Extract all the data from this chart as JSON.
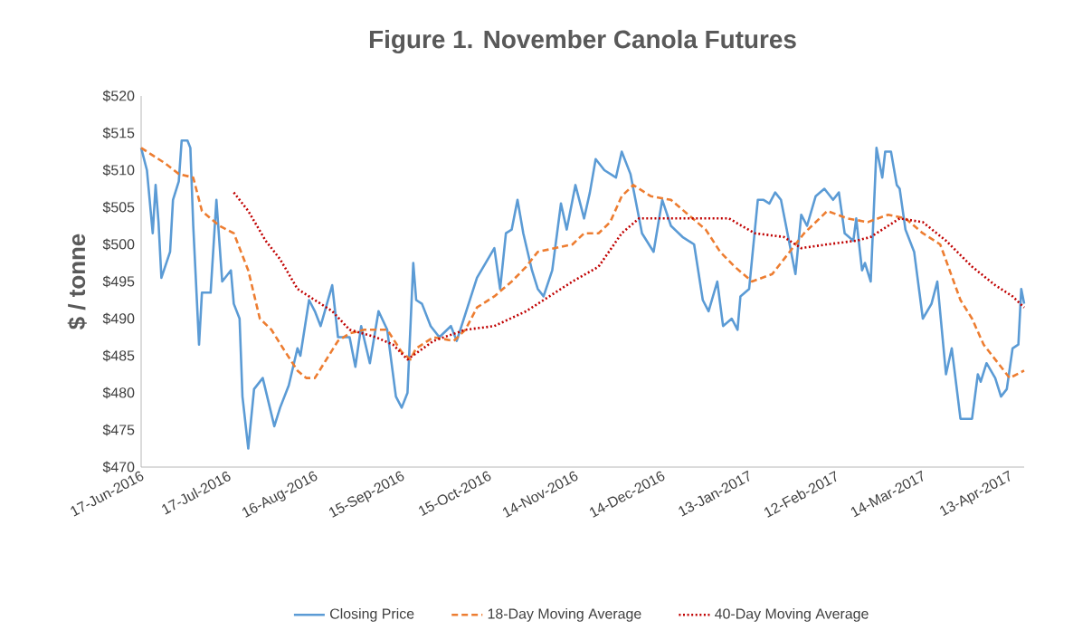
{
  "chart_data": {
    "type": "line",
    "title": "Figure 1. November Canola Futures",
    "ylabel": "$ / tonne",
    "xlim": [
      "2016-06-17",
      "2017-04-18"
    ],
    "xticks": [
      {
        "value": "2016-06-17",
        "label": "17-Jun-2016"
      },
      {
        "value": "2016-07-17",
        "label": "17-Jul-2016"
      },
      {
        "value": "2016-08-16",
        "label": "16-Aug-2016"
      },
      {
        "value": "2016-09-15",
        "label": "15-Sep-2016"
      },
      {
        "value": "2016-10-15",
        "label": "15-Oct-2016"
      },
      {
        "value": "2016-11-14",
        "label": "14-Nov-2016"
      },
      {
        "value": "2016-12-14",
        "label": "14-Dec-2016"
      },
      {
        "value": "2017-01-13",
        "label": "13-Jan-2017"
      },
      {
        "value": "2017-02-12",
        "label": "12-Feb-2017"
      },
      {
        "value": "2017-03-14",
        "label": "14-Mar-2017"
      },
      {
        "value": "2017-04-13",
        "label": "13-Apr-2017"
      }
    ],
    "ylim": [
      470,
      520
    ],
    "yticks": [
      {
        "value": 470,
        "label": "$470"
      },
      {
        "value": 475,
        "label": "$475"
      },
      {
        "value": 480,
        "label": "$480"
      },
      {
        "value": 485,
        "label": "$485"
      },
      {
        "value": 490,
        "label": "$490"
      },
      {
        "value": 495,
        "label": "$495"
      },
      {
        "value": 500,
        "label": "$500"
      },
      {
        "value": 505,
        "label": "$505"
      },
      {
        "value": 510,
        "label": "$510"
      },
      {
        "value": 515,
        "label": "$515"
      },
      {
        "value": 520,
        "label": "$520"
      }
    ],
    "grid": false,
    "legend": "bottom",
    "marker": "none",
    "series": [
      {
        "name": "Closing Price",
        "color": "#5b9bd5",
        "line_style": "solid",
        "x": [
          "2016-06-17",
          "2016-06-19",
          "2016-06-21",
          "2016-06-22",
          "2016-06-23",
          "2016-06-24",
          "2016-06-27",
          "2016-06-28",
          "2016-06-30",
          "2016-07-01",
          "2016-07-03",
          "2016-07-04",
          "2016-07-05",
          "2016-07-07",
          "2016-07-08",
          "2016-07-11",
          "2016-07-13",
          "2016-07-15",
          "2016-07-18",
          "2016-07-19",
          "2016-07-21",
          "2016-07-22",
          "2016-07-24",
          "2016-07-26",
          "2016-07-29",
          "2016-08-02",
          "2016-08-04",
          "2016-08-07",
          "2016-08-10",
          "2016-08-11",
          "2016-08-14",
          "2016-08-16",
          "2016-08-18",
          "2016-08-22",
          "2016-08-24",
          "2016-08-28",
          "2016-08-30",
          "2016-09-01",
          "2016-09-04",
          "2016-09-07",
          "2016-09-10",
          "2016-09-13",
          "2016-09-15",
          "2016-09-17",
          "2016-09-19",
          "2016-09-20",
          "2016-09-22",
          "2016-09-25",
          "2016-09-28",
          "2016-10-02",
          "2016-10-04",
          "2016-10-11",
          "2016-10-17",
          "2016-10-19",
          "2016-10-21",
          "2016-10-23",
          "2016-10-25",
          "2016-10-27",
          "2016-10-30",
          "2016-11-01",
          "2016-11-03",
          "2016-11-06",
          "2016-11-09",
          "2016-11-11",
          "2016-11-14",
          "2016-11-17",
          "2016-11-19",
          "2016-11-21",
          "2016-11-24",
          "2016-11-28",
          "2016-11-30",
          "2016-12-03",
          "2016-12-06",
          "2016-12-07",
          "2016-12-11",
          "2016-12-14",
          "2016-12-17",
          "2016-12-21",
          "2016-12-25",
          "2016-12-28",
          "2016-12-30",
          "2017-01-02",
          "2017-01-04",
          "2017-01-07",
          "2017-01-09",
          "2017-01-10",
          "2017-01-13",
          "2017-01-16",
          "2017-01-18",
          "2017-01-20",
          "2017-01-22",
          "2017-01-24",
          "2017-01-26",
          "2017-01-29",
          "2017-01-31",
          "2017-02-02",
          "2017-02-05",
          "2017-02-08",
          "2017-02-11",
          "2017-02-13",
          "2017-02-15",
          "2017-02-18",
          "2017-02-19",
          "2017-02-21",
          "2017-02-22",
          "2017-02-24",
          "2017-02-26",
          "2017-02-28",
          "2017-03-01",
          "2017-03-03",
          "2017-03-05",
          "2017-03-06",
          "2017-03-08",
          "2017-03-11",
          "2017-03-14",
          "2017-03-17",
          "2017-03-19",
          "2017-03-22",
          "2017-03-24",
          "2017-03-27",
          "2017-03-31",
          "2017-04-02",
          "2017-04-03",
          "2017-04-05",
          "2017-04-08",
          "2017-04-10",
          "2017-04-12",
          "2017-04-14",
          "2017-04-16",
          "2017-04-17",
          "2017-04-18"
        ],
        "values": [
          513,
          510,
          501.5,
          508,
          503,
          495.5,
          499,
          506,
          508.5,
          514,
          514,
          513,
          502.5,
          486.5,
          493.5,
          493.5,
          506,
          495,
          496.5,
          492,
          490,
          479.5,
          472.5,
          480.5,
          482,
          475.5,
          478,
          481,
          486,
          485,
          492.5,
          491,
          489,
          494.5,
          487.5,
          487.5,
          483.5,
          489,
          484,
          491,
          488.5,
          479.5,
          478,
          480,
          497.5,
          492.5,
          492,
          489,
          487.5,
          489,
          487,
          495.5,
          499.5,
          494,
          501.5,
          502,
          506,
          501.5,
          496.5,
          494,
          493,
          496.5,
          505.5,
          502,
          508,
          503.5,
          507,
          511.5,
          510,
          509,
          512.5,
          509.5,
          503.5,
          501.5,
          499,
          506,
          502.5,
          501,
          500,
          492.5,
          491,
          495,
          489,
          490,
          488.5,
          493,
          494,
          506,
          506,
          505.5,
          507,
          506,
          502,
          496,
          504,
          502.5,
          506.5,
          507.5,
          506,
          507,
          501.5,
          500.5,
          503.5,
          496.5,
          497.5,
          495,
          513,
          509,
          512.5,
          512.5,
          508,
          507.5,
          502,
          499,
          490,
          492,
          495,
          482.5,
          486,
          476.5,
          476.5,
          482.5,
          481.5,
          484,
          482,
          479.5,
          480.5,
          486,
          486.5,
          494,
          492
        ]
      },
      {
        "name": "18-Day Moving Average",
        "color": "#ed7d31",
        "line_style": "dashed",
        "x": [
          "2016-06-17",
          "2016-06-25",
          "2016-06-30",
          "2016-07-05",
          "2016-07-08",
          "2016-07-14",
          "2016-07-19",
          "2016-07-24",
          "2016-07-28",
          "2016-08-01",
          "2016-08-05",
          "2016-08-10",
          "2016-08-13",
          "2016-08-16",
          "2016-08-20",
          "2016-08-24",
          "2016-08-28",
          "2016-09-02",
          "2016-09-06",
          "2016-09-10",
          "2016-09-15",
          "2016-09-18",
          "2016-09-20",
          "2016-09-26",
          "2016-10-03",
          "2016-10-07",
          "2016-10-11",
          "2016-10-17",
          "2016-10-23",
          "2016-10-28",
          "2016-11-01",
          "2016-11-07",
          "2016-11-13",
          "2016-11-17",
          "2016-11-22",
          "2016-11-26",
          "2016-11-30",
          "2016-12-04",
          "2016-12-10",
          "2016-12-17",
          "2016-12-23",
          "2016-12-29",
          "2017-01-03",
          "2017-01-08",
          "2017-01-14",
          "2017-01-21",
          "2017-01-27",
          "2017-02-01",
          "2017-02-09",
          "2017-02-16",
          "2017-02-23",
          "2017-03-02",
          "2017-03-08",
          "2017-03-14",
          "2017-03-20",
          "2017-03-27",
          "2017-03-31",
          "2017-04-04",
          "2017-04-08",
          "2017-04-13",
          "2017-04-18"
        ],
        "values": [
          513,
          511,
          509.5,
          509,
          504.5,
          502.5,
          501.5,
          496.5,
          490,
          488.5,
          486,
          483,
          482,
          482,
          484.5,
          487,
          488,
          488.5,
          488.5,
          488.5,
          485.5,
          484.5,
          486,
          487.5,
          487,
          488.5,
          491.5,
          493,
          495,
          497,
          499,
          499.5,
          500,
          501.5,
          501.5,
          503,
          506.5,
          508,
          506.5,
          506,
          504,
          502,
          499,
          497,
          495,
          496,
          499,
          501.5,
          504.5,
          503.5,
          503,
          504,
          503.5,
          501.5,
          500,
          492.5,
          490,
          486.5,
          484.5,
          482,
          483
        ]
      },
      {
        "name": "40-Day Moving Average",
        "color": "#c00000",
        "line_style": "dotted",
        "x": [
          "2016-07-19",
          "2016-07-24",
          "2016-07-30",
          "2016-08-04",
          "2016-08-10",
          "2016-08-16",
          "2016-08-22",
          "2016-08-28",
          "2016-09-06",
          "2016-09-12",
          "2016-09-17",
          "2016-09-26",
          "2016-10-07",
          "2016-10-17",
          "2016-10-28",
          "2016-11-05",
          "2016-11-13",
          "2016-11-22",
          "2016-11-30",
          "2016-12-06",
          "2016-12-17",
          "2016-12-27",
          "2017-01-06",
          "2017-01-15",
          "2017-01-25",
          "2017-01-31",
          "2017-02-09",
          "2017-02-19",
          "2017-02-24",
          "2017-03-06",
          "2017-03-14",
          "2017-03-22",
          "2017-03-31",
          "2017-04-08",
          "2017-04-14",
          "2017-04-18"
        ],
        "values": [
          507,
          504.5,
          500.5,
          498,
          494,
          492.5,
          491,
          488.5,
          487.5,
          486.5,
          484.5,
          487,
          488.5,
          489,
          491,
          493,
          495,
          497,
          501.5,
          503.5,
          503.5,
          503.5,
          503.5,
          501.5,
          501,
          499.5,
          500,
          500.5,
          501,
          503.5,
          503,
          500.5,
          497,
          494.5,
          493,
          491.5
        ]
      }
    ]
  }
}
